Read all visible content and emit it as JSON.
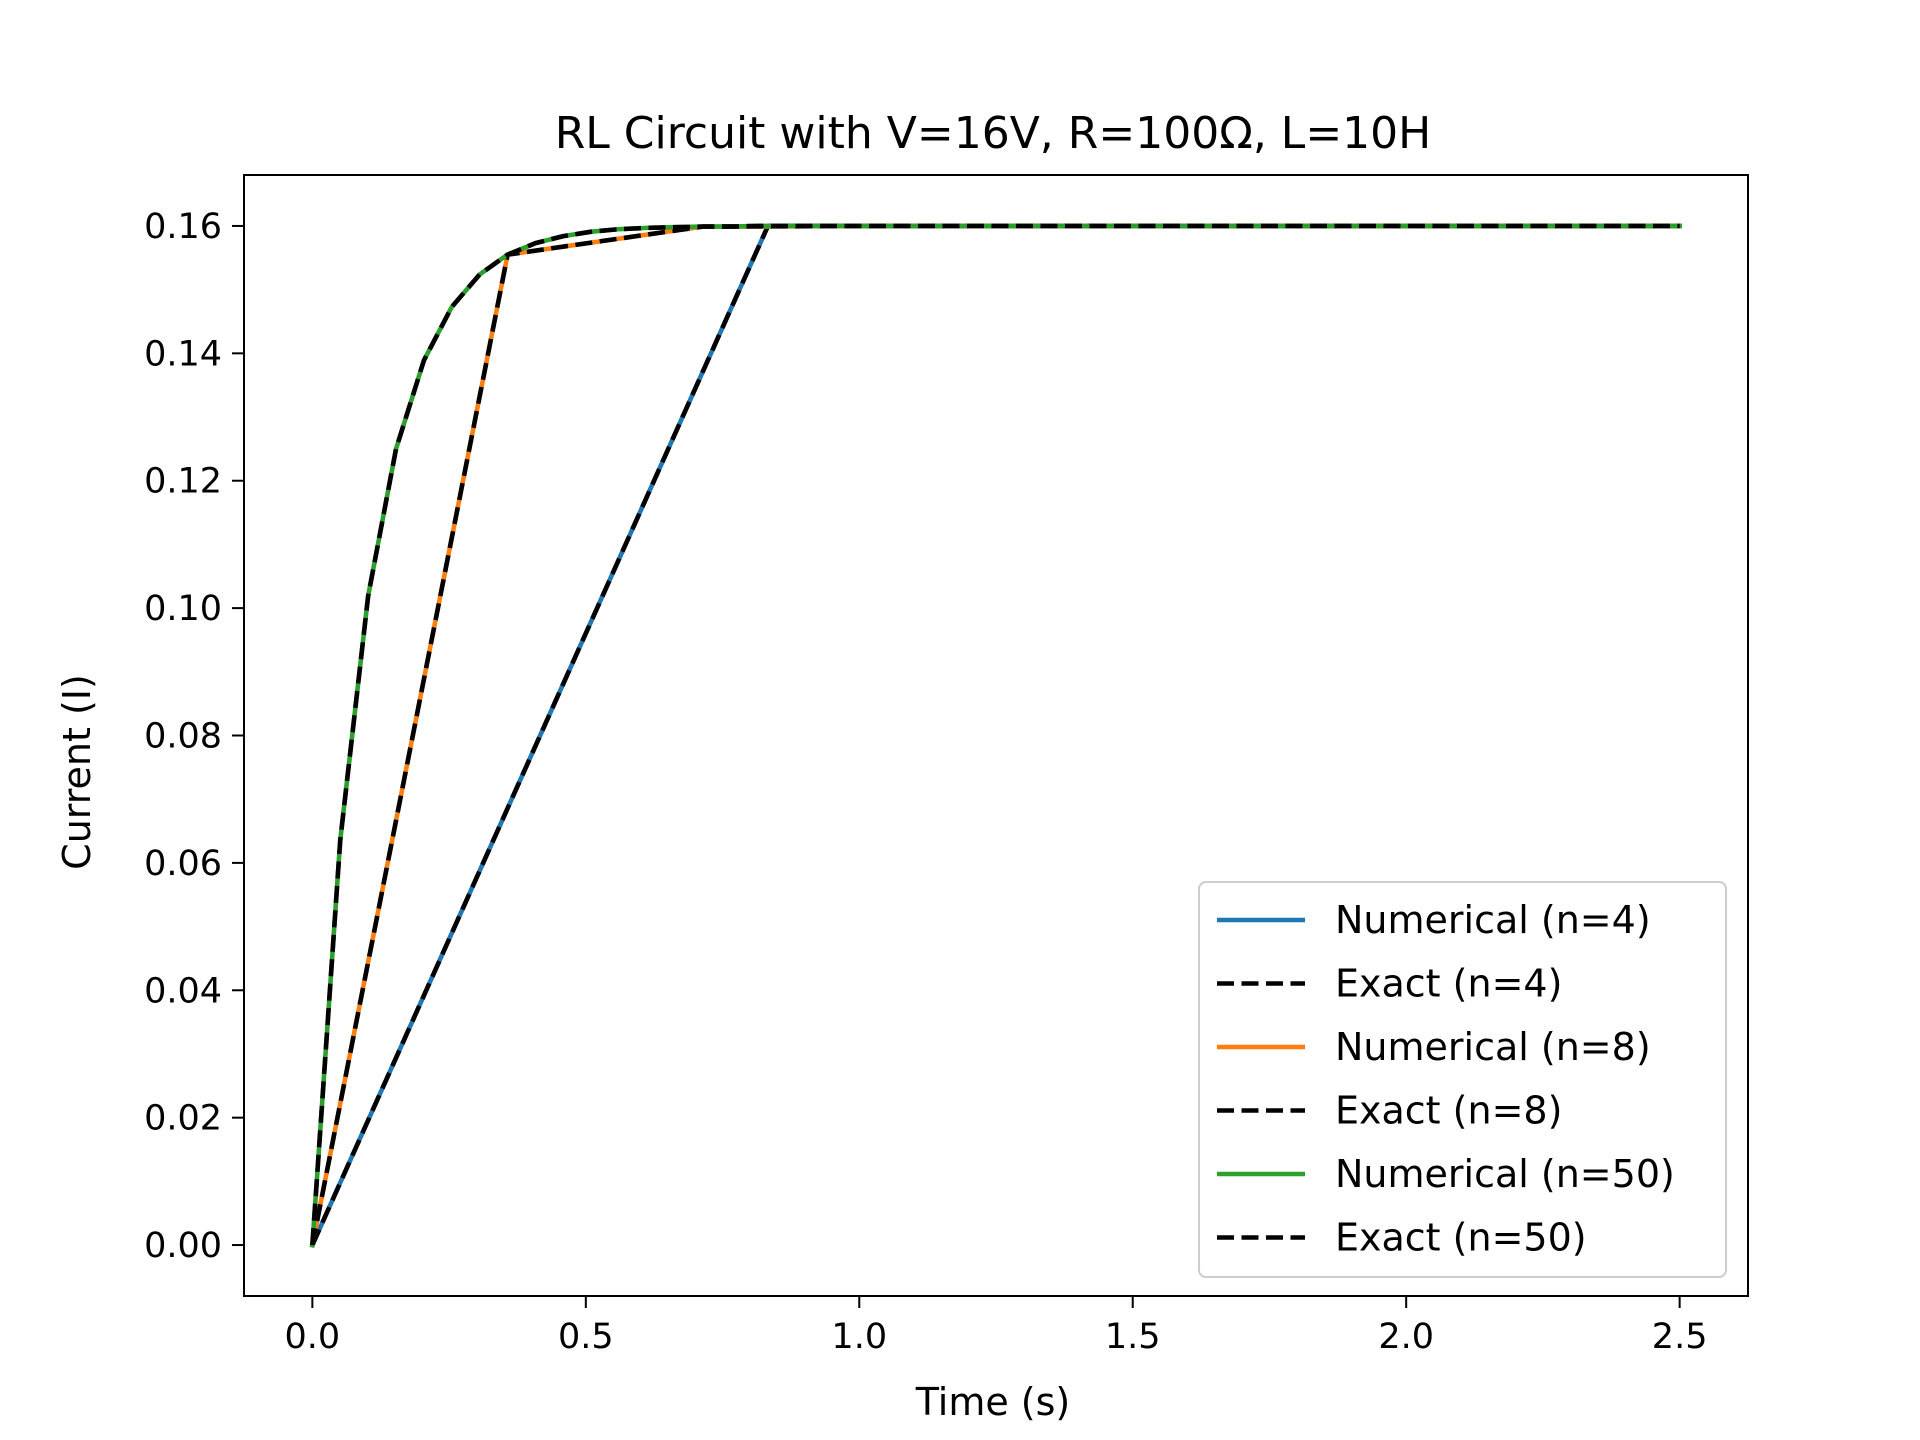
{
  "chart_data": {
    "type": "line",
    "title": "RL Circuit with V=16V, R=100Ω, L=10H",
    "xlabel": "Time (s)",
    "ylabel": "Current (I)",
    "xlim": [
      -0.125,
      2.625
    ],
    "ylim": [
      -0.008,
      0.168
    ],
    "xticks": [
      0.0,
      0.5,
      1.0,
      1.5,
      2.0,
      2.5
    ],
    "xtick_labels": [
      "0.0",
      "0.5",
      "1.0",
      "1.5",
      "2.0",
      "2.5"
    ],
    "yticks": [
      0.0,
      0.02,
      0.04,
      0.06,
      0.08,
      0.1,
      0.12,
      0.14,
      0.16
    ],
    "ytick_labels": [
      "0.00",
      "0.02",
      "0.04",
      "0.06",
      "0.08",
      "0.10",
      "0.12",
      "0.14",
      "0.16"
    ],
    "grid": false,
    "legend_position": "lower-right",
    "series": [
      {
        "name": "Numerical (n=4)",
        "color": "#1f77b4",
        "style": "solid",
        "x": [
          0.0,
          0.833,
          1.667,
          2.5
        ],
        "y": [
          0.0,
          0.16,
          0.16,
          0.16
        ]
      },
      {
        "name": "Exact (n=4)",
        "color": "#000000",
        "style": "dashed",
        "x": [
          0.0,
          0.833,
          1.667,
          2.5
        ],
        "y": [
          0.0,
          0.16,
          0.16,
          0.16
        ]
      },
      {
        "name": "Numerical (n=8)",
        "color": "#ff7f0e",
        "style": "solid",
        "x": [
          0.0,
          0.357,
          0.714,
          1.071,
          1.429,
          1.786,
          2.143,
          2.5
        ],
        "y": [
          0.0,
          0.1555,
          0.1599,
          0.16,
          0.16,
          0.16,
          0.16,
          0.16
        ]
      },
      {
        "name": "Exact (n=8)",
        "color": "#000000",
        "style": "dashed",
        "x": [
          0.0,
          0.357,
          0.714,
          1.071,
          1.429,
          1.786,
          2.143,
          2.5
        ],
        "y": [
          0.0,
          0.1555,
          0.1599,
          0.16,
          0.16,
          0.16,
          0.16,
          0.16
        ]
      },
      {
        "name": "Numerical (n=50)",
        "color": "#2ca02c",
        "style": "solid",
        "x": [
          0.0,
          0.051,
          0.102,
          0.153,
          0.204,
          0.255,
          0.306,
          0.357,
          0.408,
          0.459,
          0.51,
          0.561,
          0.612,
          0.663,
          0.714,
          0.765,
          0.816,
          0.867,
          2.5
        ],
        "y": [
          0.0,
          0.0636,
          0.1019,
          0.125,
          0.1389,
          0.1473,
          0.1524,
          0.1555,
          0.1573,
          0.1584,
          0.1591,
          0.1595,
          0.1597,
          0.1598,
          0.1599,
          0.1599,
          0.16,
          0.16,
          0.16
        ]
      },
      {
        "name": "Exact (n=50)",
        "color": "#000000",
        "style": "dashed",
        "x": [
          0.0,
          0.051,
          0.102,
          0.153,
          0.204,
          0.255,
          0.306,
          0.357,
          0.408,
          0.459,
          0.51,
          0.561,
          0.612,
          0.663,
          0.714,
          0.765,
          0.816,
          0.867,
          2.5
        ],
        "y": [
          0.0,
          0.0636,
          0.1019,
          0.125,
          0.1389,
          0.1473,
          0.1524,
          0.1555,
          0.1573,
          0.1584,
          0.1591,
          0.1595,
          0.1597,
          0.1598,
          0.1599,
          0.1599,
          0.16,
          0.16,
          0.16
        ]
      }
    ]
  }
}
